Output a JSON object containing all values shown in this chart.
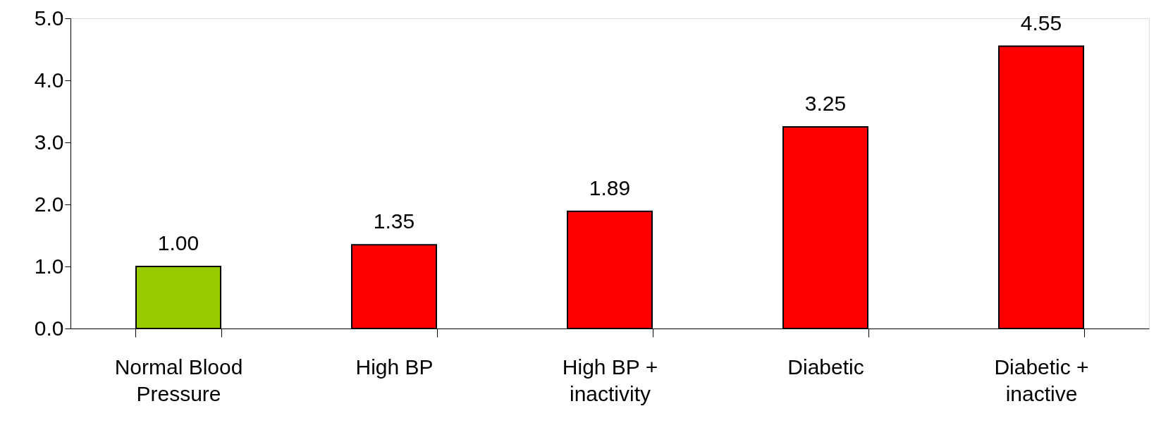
{
  "chart_data": {
    "type": "bar",
    "categories": [
      "Normal Blood Pressure",
      "High BP",
      "High BP + inactivity",
      "Diabetic",
      "Diabetic + inactive"
    ],
    "values": [
      1.0,
      1.35,
      1.89,
      3.25,
      4.55
    ],
    "colors": [
      "#99cc00",
      "#ff0000",
      "#ff0000",
      "#ff0000",
      "#ff0000"
    ],
    "ylim": [
      0,
      5
    ],
    "yticks": [
      {
        "value": 0,
        "label": "0.0"
      },
      {
        "value": 1,
        "label": "1.0"
      },
      {
        "value": 2,
        "label": "2.0"
      },
      {
        "value": 3,
        "label": "3.0"
      },
      {
        "value": 4,
        "label": "4.0"
      },
      {
        "value": 5,
        "label": "5.0"
      }
    ],
    "value_labels": [
      "1.00",
      "1.35",
      "1.89",
      "3.25",
      "4.55"
    ],
    "grid": false
  }
}
